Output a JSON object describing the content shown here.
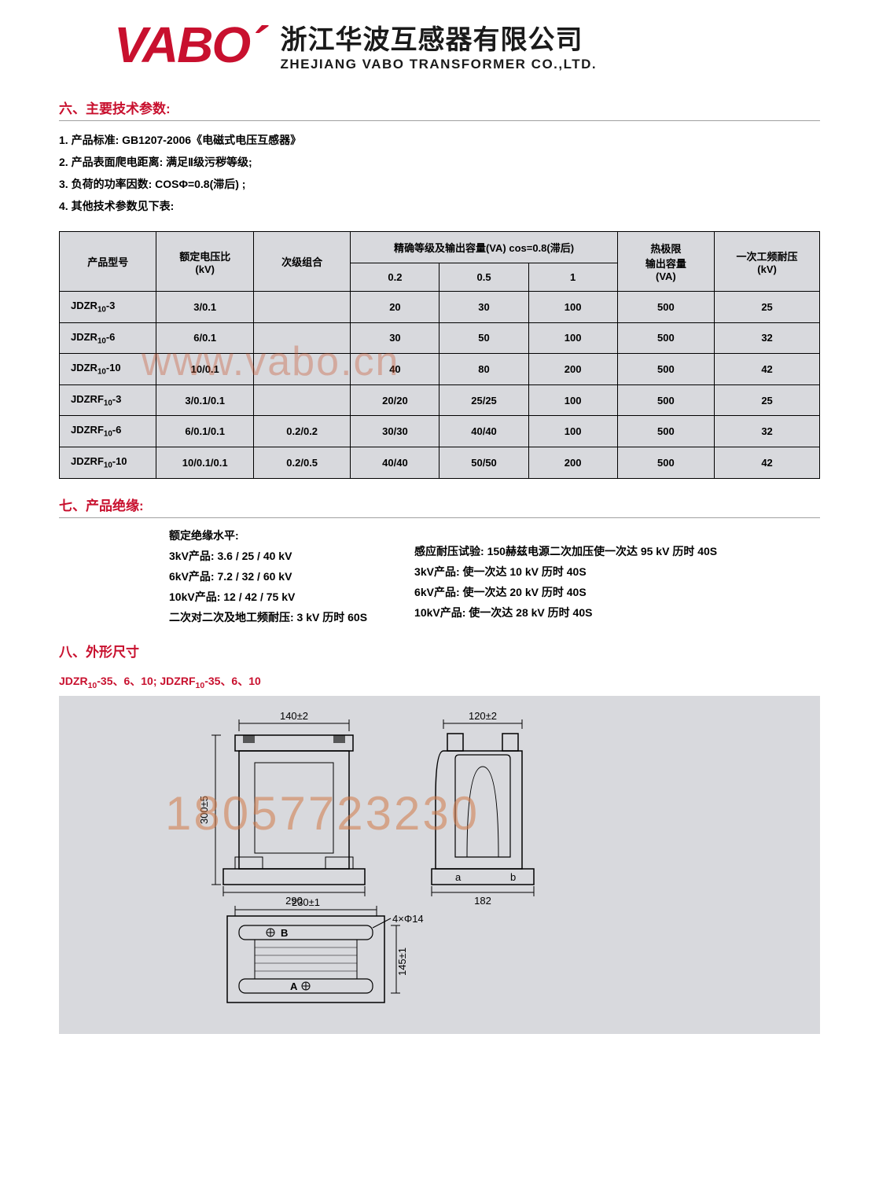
{
  "header": {
    "logo": "VABO",
    "company_cn": "浙江华波互感器有限公司",
    "company_en": "ZHEJIANG VABO TRANSFORMER CO.,LTD."
  },
  "watermarks": {
    "url": "www.vabo.cn",
    "phone": "18057723230"
  },
  "section6": {
    "title": "六、主要技术参数:",
    "items": [
      "1. 产品标准:  GB1207-2006《电磁式电压互感器》",
      "2. 产品表面爬电距离:  满足Ⅱ级污秽等级;",
      "3. 负荷的功率因数:  COSΦ=0.8(滞后) ;",
      "4. 其他技术参数见下表:"
    ]
  },
  "table": {
    "headers": {
      "model": "产品型号",
      "ratio": "额定电压比\n(kV)",
      "secondary": "次级组合",
      "accuracy_group": "精确等级及输出容量(VA)  cos=0.8(滞后)",
      "acc1": "0.2",
      "acc2": "0.5",
      "acc3": "1",
      "thermal": "热极限\n输出容量\n(VA)",
      "withstand": "一次工频耐压\n(kV)"
    },
    "rows": [
      {
        "model": "JDZR₁₀-3",
        "ratio": "3/0.1",
        "secondary": "",
        "a1": "20",
        "a2": "30",
        "a3": "100",
        "thermal": "500",
        "wv": "25"
      },
      {
        "model": "JDZR₁₀-6",
        "ratio": "6/0.1",
        "secondary": "",
        "a1": "30",
        "a2": "50",
        "a3": "100",
        "thermal": "500",
        "wv": "32"
      },
      {
        "model": "JDZR₁₀-10",
        "ratio": "10/0.1",
        "secondary": "",
        "a1": "40",
        "a2": "80",
        "a3": "200",
        "thermal": "500",
        "wv": "42"
      },
      {
        "model": "JDZRF₁₀-3",
        "ratio": "3/0.1/0.1",
        "secondary": "",
        "a1": "20/20",
        "a2": "25/25",
        "a3": "100",
        "thermal": "500",
        "wv": "25"
      },
      {
        "model": "JDZRF₁₀-6",
        "ratio": "6/0.1/0.1",
        "secondary": "0.2/0.2",
        "a1": "30/30",
        "a2": "40/40",
        "a3": "100",
        "thermal": "500",
        "wv": "32"
      },
      {
        "model": "JDZRF₁₀-10",
        "ratio": "10/0.1/0.1",
        "secondary": "0.2/0.5",
        "a1": "40/40",
        "a2": "50/50",
        "a3": "200",
        "thermal": "500",
        "wv": "42"
      }
    ]
  },
  "section7": {
    "title": "七、产品绝缘:",
    "left": [
      "额定绝缘水平:",
      "3kV产品:  3.6 / 25 / 40 kV",
      "6kV产品:  7.2 / 32 / 60 kV",
      "10kV产品:  12 / 42 / 75 kV",
      "二次对二次及地工频耐压:  3 kV   历时  60S"
    ],
    "right": [
      "感应耐压试验:  150赫兹电源二次加压使一次达  95  kV  历时  40S",
      "3kV产品:   使一次达  10 kV   历时  40S",
      "6kV产品:   使一次达  20 kV   历时  40S",
      "10kV产品:  使一次达  28 kV   历时  40S"
    ]
  },
  "section8": {
    "title": "八、外形尺寸",
    "models": "JDZR₁₀-35、6、10; JDZRF₁₀-35、6、10",
    "dims": {
      "front_w_top": "140±2",
      "front_h": "300±5",
      "front_w_bot": "290",
      "side_w_top": "120±2",
      "side_w_bot": "182",
      "side_labels": "a    b",
      "top_w": "230±1",
      "top_h": "145±1",
      "top_holes": "4×Φ14",
      "top_b": "B",
      "top_a": "A"
    },
    "colors": {
      "bg": "#d8d9dd",
      "line": "#000000",
      "accent": "#c8102e"
    }
  }
}
